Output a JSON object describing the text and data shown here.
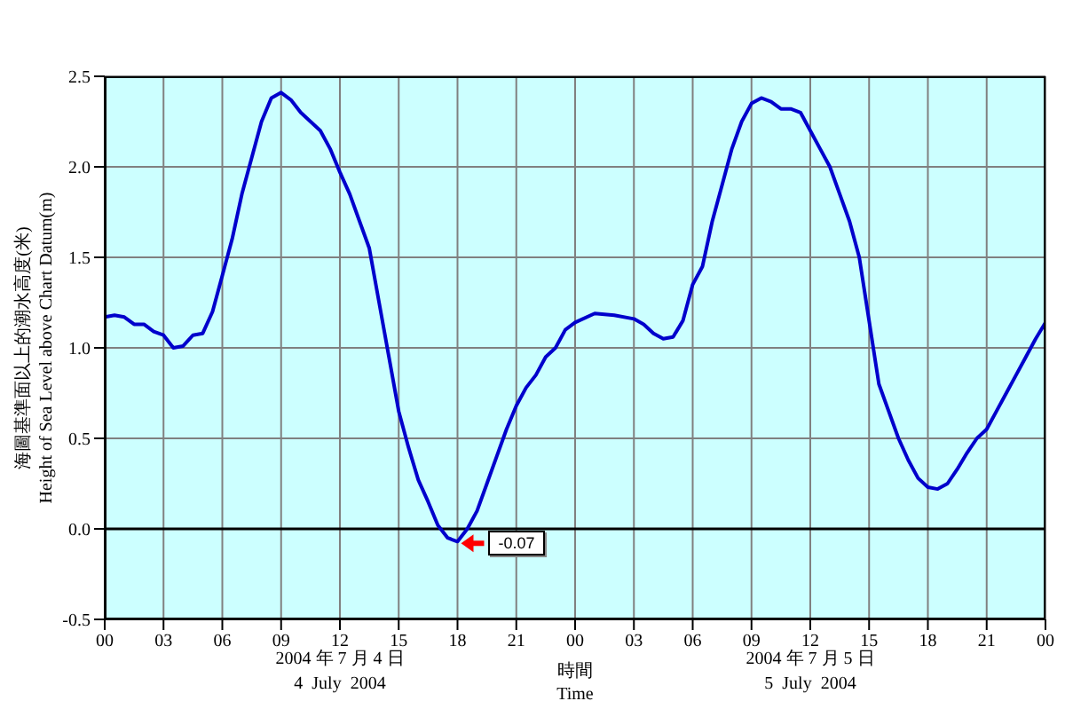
{
  "chart_data": {
    "type": "line",
    "xlabel": "時間\nTime",
    "ylabel": "海圖基準面以上的潮水高度(米)\nHeight of Sea Level above Chart Datum(m)",
    "x": [
      0,
      0.5,
      1,
      1.5,
      2,
      2.5,
      3,
      3.5,
      4,
      4.5,
      5,
      5.5,
      6,
      6.5,
      7,
      7.5,
      8,
      8.5,
      9,
      9.5,
      10,
      10.5,
      11,
      11.5,
      12,
      12.5,
      13,
      13.5,
      14,
      14.5,
      15,
      15.5,
      16,
      16.5,
      17,
      17.5,
      18,
      18.5,
      19,
      19.5,
      20,
      20.5,
      21,
      21.5,
      22,
      22.5,
      23,
      23.5,
      24,
      25,
      26,
      27,
      27.5,
      28,
      28.5,
      29,
      29.5,
      30,
      30.5,
      31,
      31.5,
      32,
      32.5,
      33,
      33.5,
      34,
      34.5,
      35,
      35.5,
      36,
      36.5,
      37,
      37.5,
      38,
      38.5,
      39,
      39.5,
      40,
      40.5,
      41,
      41.5,
      42,
      42.5,
      43,
      43.5,
      44,
      44.5,
      45,
      45.5,
      46,
      46.5,
      47,
      47.5,
      48
    ],
    "series": [
      {
        "color": "#0000cc",
        "values": [
          1.17,
          1.18,
          1.17,
          1.13,
          1.13,
          1.09,
          1.07,
          1.0,
          1.01,
          1.07,
          1.08,
          1.2,
          1.4,
          1.6,
          1.85,
          2.05,
          2.25,
          2.38,
          2.41,
          2.37,
          2.3,
          2.25,
          2.2,
          2.1,
          1.97,
          1.85,
          1.7,
          1.55,
          1.25,
          0.95,
          0.65,
          0.45,
          0.27,
          0.15,
          0.02,
          -0.05,
          -0.07,
          0.0,
          0.1,
          0.25,
          0.4,
          0.55,
          0.68,
          0.78,
          0.85,
          0.95,
          1.0,
          1.1,
          1.14,
          1.19,
          1.18,
          1.16,
          1.13,
          1.08,
          1.05,
          1.06,
          1.15,
          1.35,
          1.45,
          1.7,
          1.9,
          2.1,
          2.25,
          2.35,
          2.38,
          2.36,
          2.32,
          2.32,
          2.3,
          2.2,
          2.1,
          2.0,
          1.85,
          1.7,
          1.5,
          1.15,
          0.8,
          0.65,
          0.5,
          0.38,
          0.28,
          0.23,
          0.22,
          0.25,
          0.33,
          0.42,
          0.5,
          0.55,
          0.65,
          0.75,
          0.85,
          0.95,
          1.05,
          1.14
        ]
      }
    ],
    "xlim": [
      0,
      48
    ],
    "xticks": [
      {
        "value": 0,
        "label": "00"
      },
      {
        "value": 3,
        "label": "03"
      },
      {
        "value": 6,
        "label": "06"
      },
      {
        "value": 9,
        "label": "09"
      },
      {
        "value": 12,
        "label": "12"
      },
      {
        "value": 15,
        "label": "15"
      },
      {
        "value": 18,
        "label": "18"
      },
      {
        "value": 21,
        "label": "21"
      },
      {
        "value": 24,
        "label": "00"
      },
      {
        "value": 27,
        "label": "03"
      },
      {
        "value": 30,
        "label": "06"
      },
      {
        "value": 33,
        "label": "09"
      },
      {
        "value": 36,
        "label": "12"
      },
      {
        "value": 39,
        "label": "15"
      },
      {
        "value": 42,
        "label": "18"
      },
      {
        "value": 45,
        "label": "21"
      },
      {
        "value": 48,
        "label": "00"
      }
    ],
    "ylim": [
      -0.5,
      2.5
    ],
    "yticks": [
      {
        "value": -0.5,
        "label": "-0.5"
      },
      {
        "value": 0,
        "label": "0.0"
      },
      {
        "value": 0.5,
        "label": "0.5"
      },
      {
        "value": 1,
        "label": "1.0"
      },
      {
        "value": 1.5,
        "label": "1.5"
      },
      {
        "value": 2,
        "label": "2.0"
      },
      {
        "value": 2.5,
        "label": "2.5"
      }
    ],
    "grid": true,
    "legend": false,
    "marker": "none",
    "line_style": "solid",
    "ref_lines": [
      {
        "axis": "y",
        "value": 0,
        "color": "#000000"
      }
    ],
    "annotations": [
      {
        "text": "-0.07",
        "x": 18,
        "y": -0.07
      },
      "2004 年 7 月 4 日\n4  July  2004",
      "2004 年 7 月 5 日\n5  July  2004"
    ]
  }
}
